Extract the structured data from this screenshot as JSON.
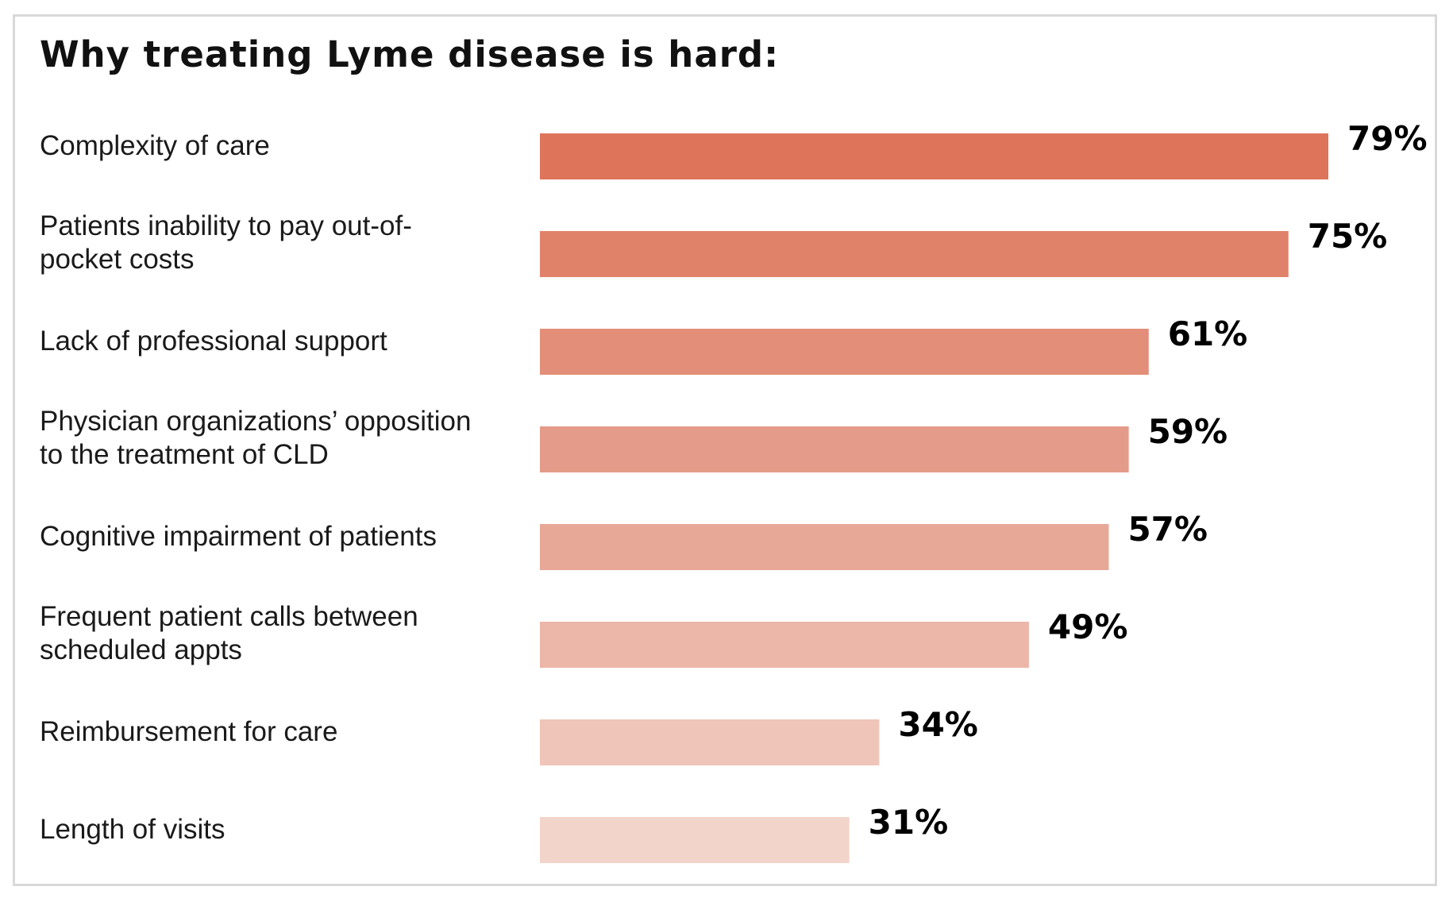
{
  "chart_data": {
    "type": "bar",
    "orientation": "horizontal",
    "title": "Why treating Lyme disease is hard:",
    "categories": [
      [
        "Complexity of care"
      ],
      [
        "Patients inability to pay out-of-",
        "pocket costs"
      ],
      [
        "Lack of professional support"
      ],
      [
        "Physician organizations’ opposition",
        "to the treatment of CLD"
      ],
      [
        "Cognitive impairment of patients"
      ],
      [
        "Frequent patient calls between",
        "scheduled appts"
      ],
      [
        "Reimbursement for care"
      ],
      [
        "Length of visits"
      ]
    ],
    "values": [
      79,
      75,
      61,
      59,
      57,
      49,
      34,
      31
    ],
    "value_labels": [
      "79%",
      "75%",
      "61%",
      "59%",
      "57%",
      "49%",
      "34%",
      "31%"
    ],
    "colors": [
      "#de745a",
      "#e0826a",
      "#e28e79",
      "#e59b89",
      "#e8a898",
      "#ecb6a8",
      "#f0c5b9",
      "#f3d4ca"
    ],
    "xlabel": "",
    "ylabel": "",
    "xlim": [
      0,
      79
    ],
    "grid": false,
    "legend": "none"
  }
}
